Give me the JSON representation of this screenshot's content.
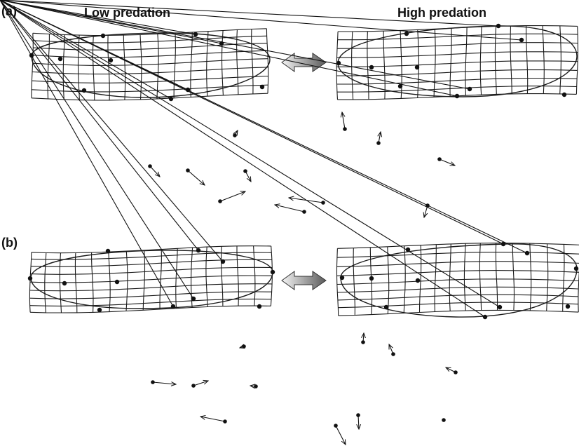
{
  "labels": {
    "panel_a": "(a)",
    "panel_b": "(b)",
    "low": "Low predation",
    "high": "High predation"
  },
  "colors": {
    "ink": "#111111",
    "arrow_light": "#f2f2f2",
    "arrow_dark": "#555555"
  },
  "icons": {
    "comparison": "double-arrow-icon"
  }
}
